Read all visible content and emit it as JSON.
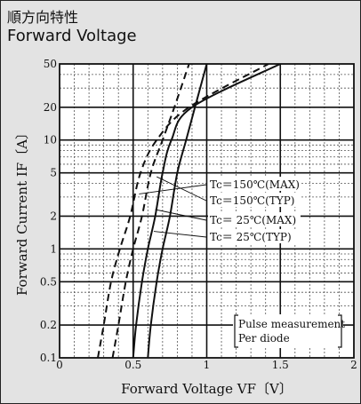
{
  "header": {
    "title_jp": "順方向特性",
    "title_en": "Forward Voltage"
  },
  "chart_data": {
    "type": "line",
    "xlabel": "Forward Voltage  VF〔V〕",
    "ylabel": "Forward Current  IF〔A〕",
    "xlim": [
      0,
      2
    ],
    "ylim": [
      0.1,
      50
    ],
    "yscale": "log",
    "x_ticks": [
      "0",
      "0.5",
      "1",
      "1.5",
      "2"
    ],
    "x_tick_values": [
      0,
      0.5,
      1,
      1.5,
      2
    ],
    "y_ticks": [
      "0.1",
      "0.2",
      "0.5",
      "1",
      "2",
      "5",
      "10",
      "20",
      "50"
    ],
    "y_tick_values": [
      0.1,
      0.2,
      0.5,
      1,
      2,
      5,
      10,
      20,
      50
    ],
    "grid": true,
    "series": [
      {
        "name": "Tc＝150℃(MAX)",
        "style": "dashed",
        "x": [
          0.36,
          0.4,
          0.45,
          0.5,
          0.56,
          0.62,
          0.7,
          0.78,
          0.88
        ],
        "y": [
          0.1,
          0.2,
          0.5,
          1,
          2,
          5,
          10,
          20,
          50
        ]
      },
      {
        "name": "Tc＝150℃(TYP)",
        "style": "dashed",
        "x": [
          0.26,
          0.3,
          0.35,
          0.41,
          0.48,
          0.55,
          0.66,
          0.88,
          1.42
        ],
        "y": [
          0.1,
          0.2,
          0.5,
          1,
          2,
          5,
          10,
          20,
          50
        ]
      },
      {
        "name": "Tc＝ 25℃(MAX)",
        "style": "solid",
        "x": [
          0.6,
          0.62,
          0.66,
          0.7,
          0.75,
          0.8,
          0.86,
          0.92,
          1.0
        ],
        "y": [
          0.1,
          0.2,
          0.5,
          1,
          2,
          5,
          10,
          20,
          50
        ]
      },
      {
        "name": "Tc＝ 25℃(TYP)",
        "style": "solid",
        "x": [
          0.5,
          0.52,
          0.56,
          0.6,
          0.65,
          0.7,
          0.76,
          0.9,
          1.5
        ],
        "y": [
          0.1,
          0.2,
          0.5,
          1,
          2,
          5,
          10,
          20,
          50
        ]
      }
    ],
    "annotations": [
      "Pulse measurement",
      "Per diode"
    ]
  }
}
